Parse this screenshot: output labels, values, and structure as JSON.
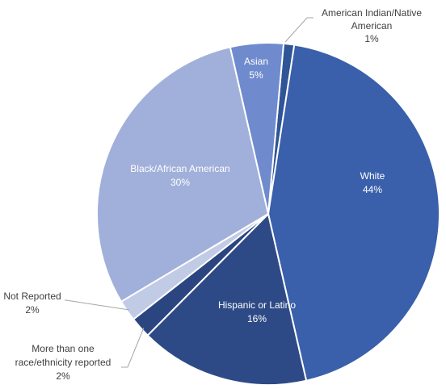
{
  "chart_data": {
    "type": "pie",
    "title": "",
    "slices": [
      {
        "label": "American Indian/Native American",
        "percent_label": "1%",
        "value": 1,
        "color": "#2f5597"
      },
      {
        "label": "White",
        "percent_label": "44%",
        "value": 44,
        "color": "#3a5fab"
      },
      {
        "label": "Hispanic or Latino",
        "percent_label": "16%",
        "value": 16,
        "color": "#2e4a86"
      },
      {
        "label": "More than one race/ethnicity reported",
        "percent_label": "2%",
        "value": 2,
        "color": "#2b4580"
      },
      {
        "label": "Not Reported",
        "percent_label": "2%",
        "value": 2,
        "color": "#c2cbe6"
      },
      {
        "label": "Black/African American",
        "percent_label": "30%",
        "value": 30,
        "color": "#a1b0da"
      },
      {
        "label": "Asian",
        "percent_label": "5%",
        "value": 5,
        "color": "#6f8bcd"
      }
    ],
    "label_colors": {
      "inside_dark": "#ffffff",
      "outside": "#404040"
    }
  }
}
